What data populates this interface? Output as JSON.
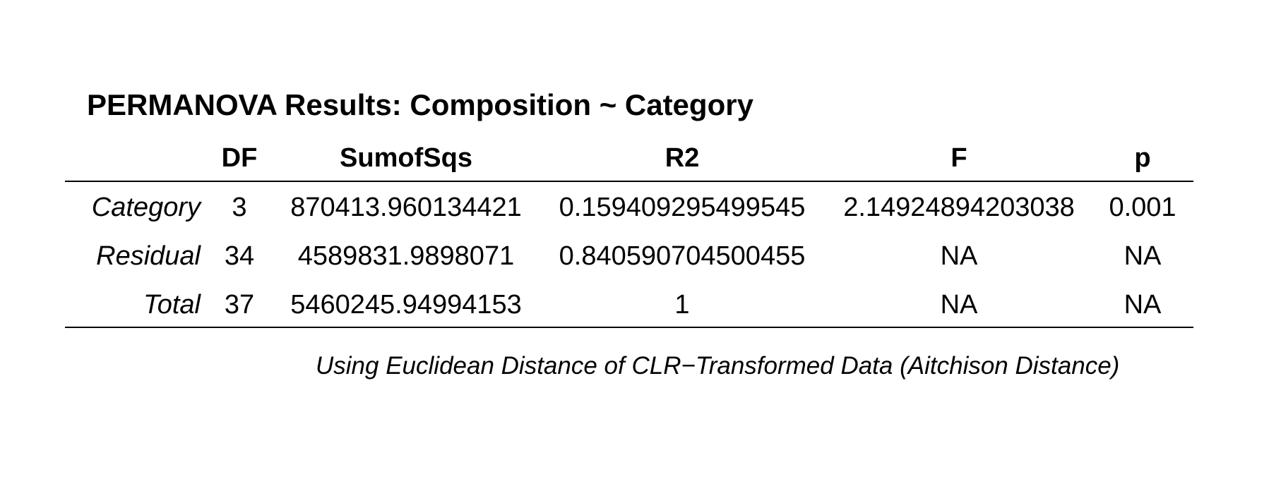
{
  "chart_data": {
    "type": "table",
    "title": "PERMANOVA Results: Composition ~ Category",
    "columns": [
      "DF",
      "SumofSqs",
      "R2",
      "F",
      "p"
    ],
    "rows": [
      {
        "label": "Category",
        "cells": [
          "3",
          "870413.960134421",
          "0.159409295499545",
          "2.14924894203038",
          "0.001"
        ]
      },
      {
        "label": "Residual",
        "cells": [
          "34",
          "4589831.9898071",
          "0.840590704500455",
          "NA",
          "NA"
        ]
      },
      {
        "label": "Total",
        "cells": [
          "37",
          "5460245.94994153",
          "1",
          "NA",
          "NA"
        ]
      }
    ],
    "caption": "Using Euclidean Distance of CLR−Transformed Data (Aitchison Distance)"
  }
}
